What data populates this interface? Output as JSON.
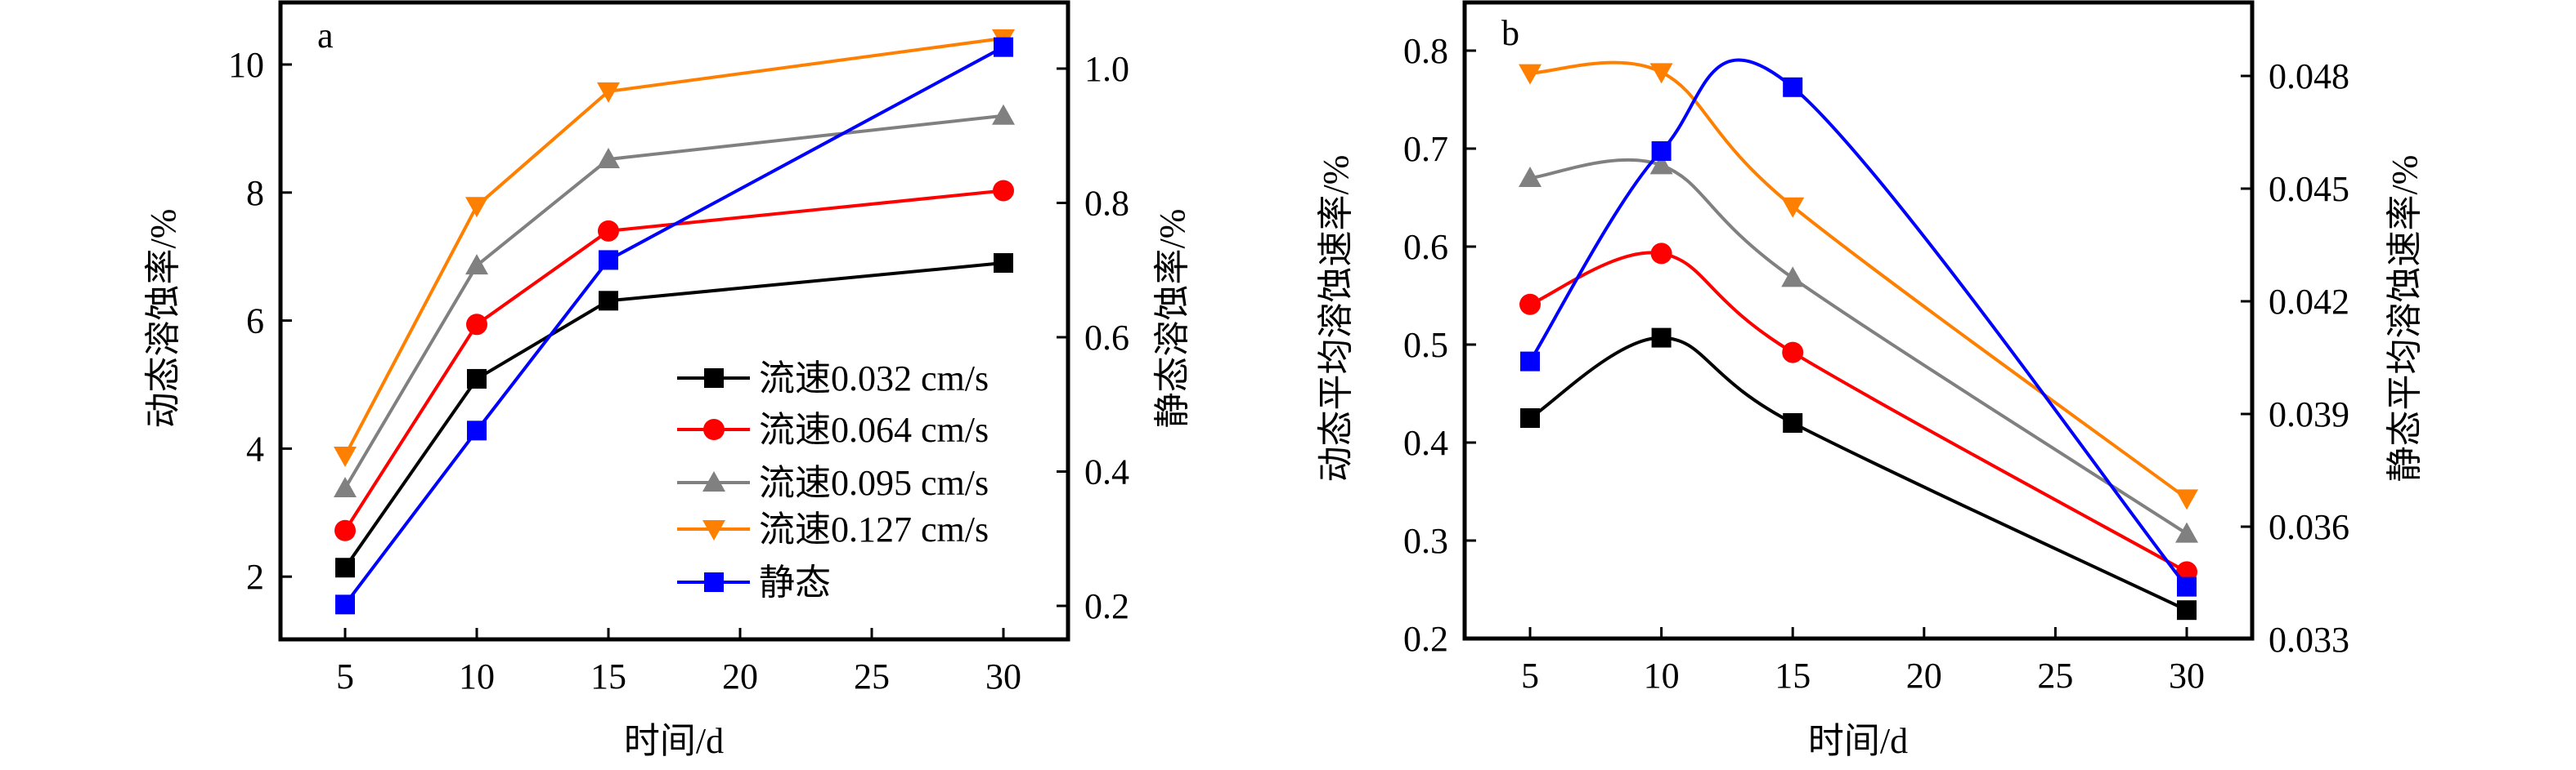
{
  "figure": {
    "panels": [
      "a",
      "b"
    ]
  },
  "chart_data": [
    {
      "id": "a",
      "type": "line",
      "panel_label": "a",
      "title": "",
      "xlabel": "时间/d",
      "ylabel": "动态溶蚀率/%",
      "ylabel_right": "静态溶蚀率/%",
      "x_ticks": [
        5,
        10,
        15,
        20,
        25,
        30
      ],
      "xlim": [
        2,
        32
      ],
      "y_ticks": [
        2,
        4,
        6,
        8,
        10
      ],
      "ylim": [
        0.97,
        11.0
      ],
      "y_right_ticks": [
        "0.2",
        "0.4",
        "0.6",
        "0.8",
        "1.0"
      ],
      "y_right_tick_values": [
        0.2,
        0.4,
        0.6,
        0.8,
        1.0
      ],
      "ylim_right": [
        0.15,
        1.1
      ],
      "grid": false,
      "smooth": false,
      "legend": {
        "position": "center-right",
        "show": true
      },
      "series": [
        {
          "name": "流速0.032 cm/s",
          "axis": "left",
          "color": "#000000",
          "marker": "square",
          "x": [
            5,
            10,
            15,
            30
          ],
          "values": [
            2.14,
            5.09,
            6.31,
            6.9
          ]
        },
        {
          "name": "流速0.064 cm/s",
          "axis": "left",
          "color": "#ff0000",
          "marker": "circle",
          "x": [
            5,
            10,
            15,
            30
          ],
          "values": [
            2.72,
            5.94,
            7.4,
            8.03
          ]
        },
        {
          "name": "流速0.095 cm/s",
          "axis": "left",
          "color": "#808080",
          "marker": "triangle-up",
          "x": [
            5,
            10,
            15,
            30
          ],
          "values": [
            3.38,
            6.86,
            8.52,
            9.2
          ]
        },
        {
          "name": "流速0.127 cm/s",
          "axis": "left",
          "color": "#ff8000",
          "marker": "triangle-down",
          "x": [
            5,
            10,
            15,
            30
          ],
          "values": [
            3.89,
            7.79,
            9.58,
            10.41
          ]
        },
        {
          "name": "静态",
          "axis": "right",
          "color": "#0000ff",
          "marker": "square",
          "x": [
            5,
            10,
            15,
            30
          ],
          "values": [
            0.202,
            0.461,
            0.715,
            1.032
          ]
        }
      ]
    },
    {
      "id": "b",
      "type": "line",
      "panel_label": "b",
      "title": "",
      "xlabel": "时间/d",
      "ylabel": "动态平均溶蚀速率/%",
      "ylabel_right": "静态平均溶蚀速率/%",
      "x_ticks": [
        5,
        10,
        15,
        20,
        25,
        30
      ],
      "xlim": [
        2,
        32
      ],
      "y_ticks": [
        "0.2",
        "0.3",
        "0.4",
        "0.5",
        "0.6",
        "0.7",
        "0.8"
      ],
      "y_tick_values": [
        0.2,
        0.3,
        0.4,
        0.5,
        0.6,
        0.7,
        0.8
      ],
      "ylim": [
        0.2,
        0.85
      ],
      "y_right_ticks": [
        "0.033",
        "0.036",
        "0.039",
        "0.042",
        "0.045",
        "0.048"
      ],
      "y_right_tick_values": [
        0.033,
        0.036,
        0.039,
        0.042,
        0.045,
        0.048
      ],
      "ylim_right": [
        0.033,
        0.05
      ],
      "grid": false,
      "smooth": true,
      "legend": {
        "show": false
      },
      "series": [
        {
          "name": "流速0.032 cm/s",
          "axis": "left",
          "color": "#000000",
          "marker": "square",
          "x": [
            5,
            10,
            15,
            30
          ],
          "values": [
            0.425,
            0.507,
            0.42,
            0.229
          ]
        },
        {
          "name": "流速0.064 cm/s",
          "axis": "left",
          "color": "#ff0000",
          "marker": "circle",
          "x": [
            5,
            10,
            15,
            30
          ],
          "values": [
            0.541,
            0.593,
            0.492,
            0.268
          ]
        },
        {
          "name": "流速0.095 cm/s",
          "axis": "left",
          "color": "#808080",
          "marker": "triangle-up",
          "x": [
            5,
            10,
            15,
            30
          ],
          "values": [
            0.67,
            0.683,
            0.568,
            0.307
          ]
        },
        {
          "name": "流速0.127 cm/s",
          "axis": "left",
          "color": "#ff8000",
          "marker": "triangle-down",
          "x": [
            5,
            10,
            15,
            30
          ],
          "values": [
            0.777,
            0.778,
            0.641,
            0.343
          ]
        },
        {
          "name": "静态",
          "axis": "right",
          "color": "#0000ff",
          "marker": "square",
          "x": [
            5,
            10,
            15,
            30
          ],
          "values": [
            0.0404,
            0.046,
            0.0477,
            0.0344
          ]
        }
      ]
    }
  ]
}
